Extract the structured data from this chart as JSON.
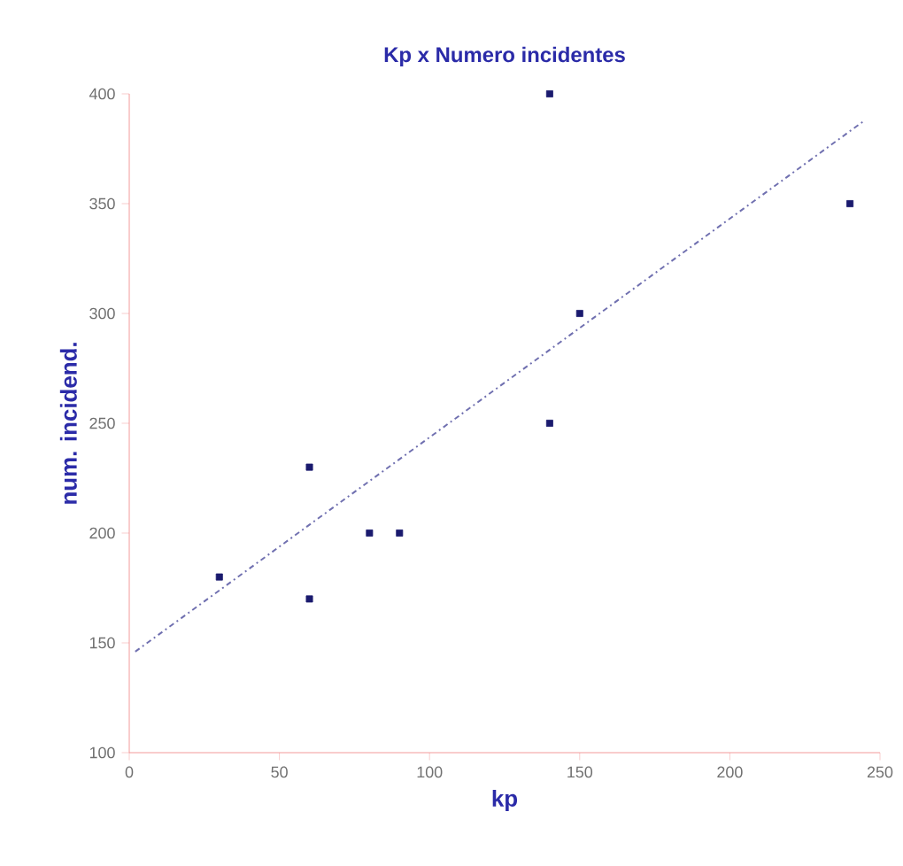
{
  "chart_data": {
    "type": "scatter",
    "title": "Kp x Numero incidentes",
    "xlabel": "kp",
    "ylabel": "num. incidend.",
    "xlim": [
      0,
      250
    ],
    "ylim": [
      100,
      400
    ],
    "xticks": [
      0,
      50,
      100,
      150,
      200,
      250
    ],
    "yticks": [
      100,
      150,
      200,
      250,
      300,
      350,
      400
    ],
    "grid": false,
    "series": [
      {
        "type": "scatter",
        "marker": "square",
        "color": "#1a1a6e",
        "x": [
          30,
          60,
          60,
          80,
          90,
          140,
          140,
          150,
          240
        ],
        "values": [
          180,
          230,
          170,
          200,
          200,
          400,
          250,
          300,
          350
        ]
      },
      {
        "type": "line",
        "color": "#7070b0",
        "line_style": "dashdotted",
        "marker": "none",
        "x": [
          2,
          245
        ],
        "values": [
          146,
          388
        ]
      }
    ]
  }
}
